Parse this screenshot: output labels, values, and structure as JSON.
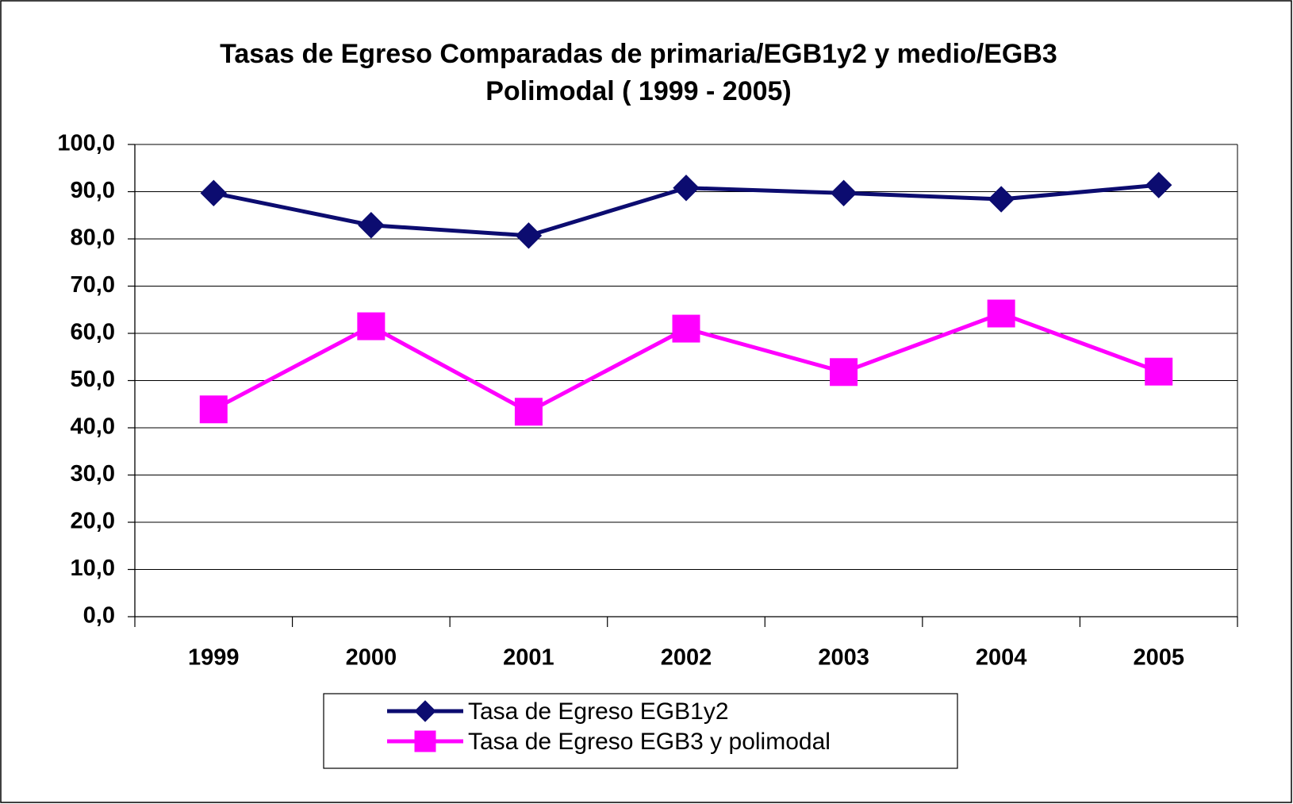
{
  "chart_data": {
    "type": "line",
    "title": [
      "Tasas de Egreso Comparadas de primaria/EGB1y2 y medio/EGB3",
      "Polimodal ( 1999 - 2005)"
    ],
    "categories": [
      "1999",
      "2000",
      "2001",
      "2002",
      "2003",
      "2004",
      "2005"
    ],
    "series": [
      {
        "name": "Tasa de Egreso EGB1y2",
        "color": "#0c0c70",
        "marker": "diamond",
        "values": [
          89.7,
          82.9,
          80.7,
          90.8,
          89.7,
          88.4,
          91.4
        ]
      },
      {
        "name": "Tasa de Egreso EGB3 y polimodal",
        "color": "#ff00ff",
        "marker": "square",
        "values": [
          43.9,
          61.5,
          43.4,
          61.0,
          51.8,
          64.2,
          51.9
        ]
      }
    ],
    "ylim": [
      0,
      100
    ],
    "yticks": [
      {
        "value": 0,
        "label": "0,0"
      },
      {
        "value": 10,
        "label": "10,0"
      },
      {
        "value": 20,
        "label": "20,0"
      },
      {
        "value": 30,
        "label": "30,0"
      },
      {
        "value": 40,
        "label": "40,0"
      },
      {
        "value": 50,
        "label": "50,0"
      },
      {
        "value": 60,
        "label": "60,0"
      },
      {
        "value": 70,
        "label": "70,0"
      },
      {
        "value": 80,
        "label": "80,0"
      },
      {
        "value": 90,
        "label": "90,0"
      },
      {
        "value": 100,
        "label": "100,0"
      }
    ],
    "grid": true,
    "legend": "bottom"
  }
}
